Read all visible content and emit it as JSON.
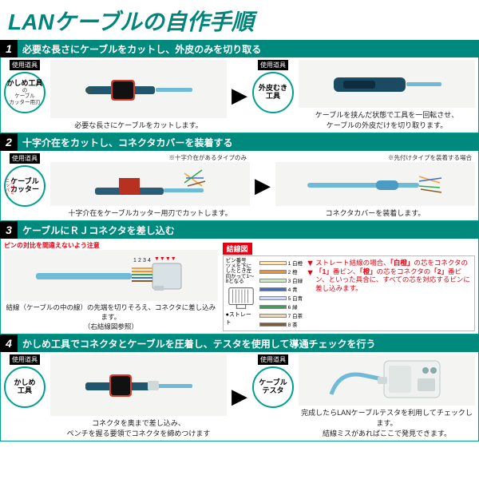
{
  "title": "LANケーブルの自作手順",
  "colors": {
    "accent": "#008a7e",
    "accentBorder": "#00a090",
    "red": "#e60012",
    "imgBg": "#f4f4f2"
  },
  "steps": [
    {
      "num": "1",
      "title": "必要な長さにケーブルをカットし、外皮のみを切り取る",
      "leftTool": {
        "label": "使用道具",
        "main": "かしめ工具",
        "sub": "の\nケーブル\nカッター用刃"
      },
      "rightTool": {
        "label": "使用道具",
        "main": "外皮むき\n工具"
      },
      "leftCaption": "必要な長さにケーブルをカットします。",
      "rightCaption": "ケーブルを挟んだ状態で工具を一回転させ、\nケーブルの外皮だけを切り取ります。"
    },
    {
      "num": "2",
      "title": "十字介在をカットし、コネクタカバーを装着する",
      "leftTool": {
        "label": "使用道具",
        "main": "ケーブル\nカッター",
        "side": "ハサミ\nニッパー"
      },
      "leftNote": "※十字介在があるタイプのみ",
      "rightNote": "※先付けタイプを装着する場合",
      "leftCaption": "十字介在をケーブルカッター用刃でカットします。",
      "rightCaption": "コネクタカバーを装着します。"
    },
    {
      "num": "3",
      "title": "ケーブルにＲＪコネクタを差し込む",
      "warn": "ピンの対比を間違えないよう注意",
      "leftCaption": "結線（ケーブルの中の線）の先端を切りそろえ、コネクタに差し込みます。\n（右結線図参照）",
      "wiring": {
        "label": "結線図",
        "sub": "ピン番号\nツメを下にしたとき左\n向かって1〜8となる",
        "straight": "●ストレート",
        "pins": [
          {
            "n": "1",
            "c": "#ffe6b0",
            "t": "白橙"
          },
          {
            "n": "2",
            "c": "#ff8c1a",
            "t": "橙"
          },
          {
            "n": "3",
            "c": "#cfe9c6",
            "t": "白緑"
          },
          {
            "n": "4",
            "c": "#3a6fd8",
            "t": "青"
          },
          {
            "n": "5",
            "c": "#cddcf3",
            "t": "白青"
          },
          {
            "n": "6",
            "c": "#2fa84f",
            "t": "緑"
          },
          {
            "n": "7",
            "c": "#e6d7bd",
            "t": "白茶"
          },
          {
            "n": "8",
            "c": "#8a5a2a",
            "t": "茶"
          }
        ],
        "redText": "ストレート結線の場合、「白橙」の芯をコネクタの「1」番ピン、「橙」の芯をコネクタの「2」番ピン、といった具合に、すべての芯を対応するピンに差し込みます。"
      }
    },
    {
      "num": "4",
      "title": "かしめ工具でコネクタとケーブルを圧着し、テスタを使用して導通チェックを行う",
      "leftTool": {
        "label": "使用道具",
        "main": "かしめ\n工具"
      },
      "rightTool": {
        "label": "使用道具",
        "main": "ケーブル\nテスタ"
      },
      "leftCaption": "コネクタを奥まで差し込み、\nペンチを握る要領でコネクタを締めつけます",
      "rightCaption": "完成したらLANケーブルテスタを利用してチェックします。\n結線ミスがあればここで発見できます。"
    }
  ]
}
